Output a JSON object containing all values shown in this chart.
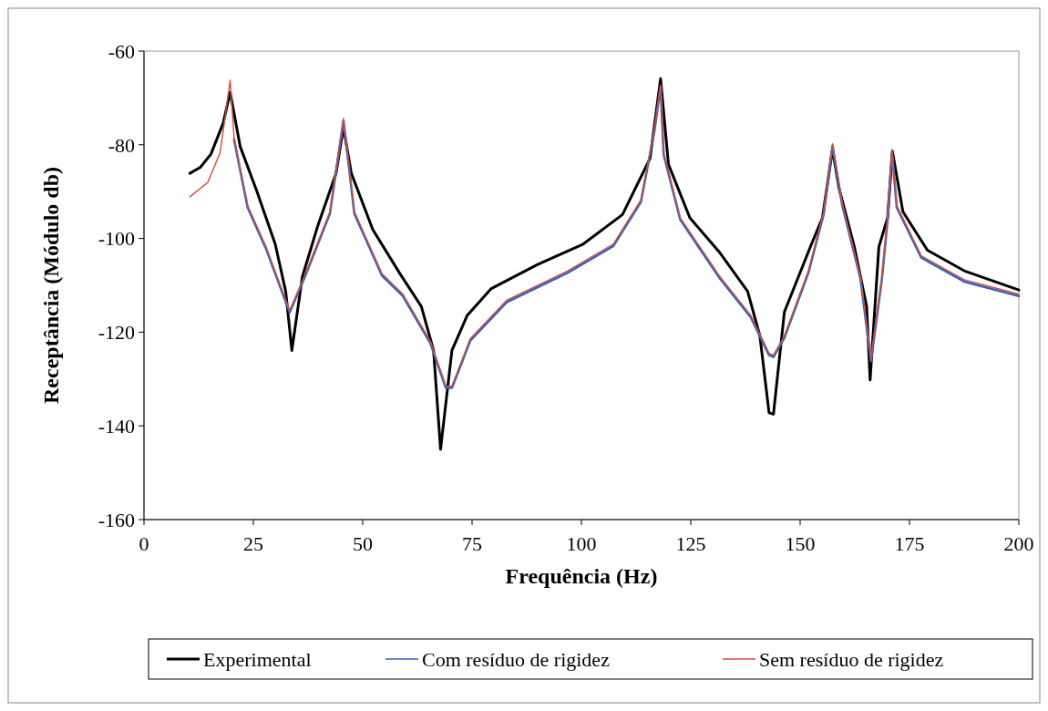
{
  "chart_data": {
    "type": "line",
    "xlabel": "Frequência (Hz)",
    "ylabel": "Receptância (Módulo db)",
    "xlim": [
      0,
      200
    ],
    "xticks": [
      0,
      25,
      50,
      75,
      100,
      125,
      150,
      175,
      200
    ],
    "ylim": [
      -160,
      -60
    ],
    "yticks": [
      -160,
      -140,
      -120,
      -100,
      -80,
      -60
    ],
    "grid": false,
    "legend": "bottom",
    "marker": "none",
    "line_style": "solid",
    "series": [
      {
        "name": "Experimental",
        "color": "#000000",
        "x": [
          10.5,
          12.9,
          15.3,
          18.1,
          19.7,
          22.0,
          25.8,
          30.0,
          32.4,
          33.8,
          36.2,
          39.7,
          43.9,
          45.6,
          47.4,
          52.3,
          58.5,
          63.4,
          66.2,
          67.8,
          70.4,
          73.9,
          79.4,
          89.9,
          100.4,
          109.4,
          115.7,
          118.1,
          119.9,
          124.8,
          131.7,
          138.0,
          140.8,
          142.9,
          143.9,
          146.4,
          152.6,
          155.1,
          157.4,
          158.9,
          162.4,
          165.2,
          166.0,
          168.0,
          170.0,
          171.1,
          173.5,
          179.1,
          187.5,
          200
        ],
        "values": [
          -86.1,
          -84.8,
          -82.0,
          -75.4,
          -68.8,
          -80.4,
          -89.9,
          -101.2,
          -111.3,
          -123.9,
          -108.2,
          -97.4,
          -86.1,
          -76.3,
          -86.1,
          -98.1,
          -107.5,
          -114.5,
          -123.9,
          -145.0,
          -123.9,
          -116.4,
          -110.7,
          -105.6,
          -101.2,
          -94.9,
          -82.9,
          -65.9,
          -84.2,
          -95.6,
          -103.1,
          -111.3,
          -120.8,
          -137.2,
          -137.5,
          -115.7,
          -101.2,
          -95.6,
          -81.0,
          -89.3,
          -101.8,
          -114.5,
          -130.2,
          -101.8,
          -95.6,
          -81.4,
          -94.3,
          -102.5,
          -106.9,
          -111.0
        ]
      },
      {
        "name": "Com resíduo de rigidez",
        "color": "#3b5fc0",
        "x": [
          20.6,
          23.7,
          27.9,
          33.3,
          36.9,
          42.5,
          45.6,
          48.1,
          54.4,
          59.2,
          65.5,
          69.0,
          70.4,
          74.6,
          82.9,
          96.9,
          107.3,
          113.6,
          116.7,
          118.1,
          118.8,
          122.6,
          131.7,
          138.7,
          142.9,
          143.9,
          146.4,
          151.9,
          155.4,
          157.4,
          159.6,
          163.8,
          166.2,
          168.7,
          170.0,
          171.0,
          172.1,
          177.7,
          187.5,
          200
        ],
        "values": [
          -78.9,
          -93.4,
          -102.2,
          -115.8,
          -107.9,
          -94.7,
          -74.8,
          -94.7,
          -107.9,
          -112.3,
          -122.4,
          -131.9,
          -131.9,
          -121.8,
          -113.6,
          -107.3,
          -101.6,
          -92.2,
          -77.0,
          -67.6,
          -82.1,
          -96.0,
          -108.6,
          -116.8,
          -124.9,
          -125.3,
          -121.2,
          -107.3,
          -94.7,
          -80.2,
          -92.8,
          -108.6,
          -126.2,
          -108.6,
          -96.0,
          -81.4,
          -93.4,
          -104.1,
          -109.2,
          -112.3
        ]
      },
      {
        "name": "Sem resíduo de rigidez",
        "color": "#cf4f3c",
        "x": [
          10.5,
          14.6,
          17.4,
          19.7,
          20.6,
          23.7,
          27.9,
          33.3,
          36.9,
          42.5,
          45.6,
          48.1,
          54.4,
          59.2,
          65.5,
          69.0,
          70.4,
          74.6,
          82.9,
          96.9,
          107.3,
          113.6,
          116.7,
          118.1,
          118.8,
          122.6,
          131.7,
          138.7,
          142.9,
          143.9,
          146.4,
          151.9,
          155.4,
          157.4,
          159.6,
          163.8,
          166.2,
          168.7,
          170.0,
          171.0,
          172.1,
          177.7,
          187.5,
          200
        ],
        "values": [
          -91.1,
          -88.0,
          -81.7,
          -66.2,
          -78.5,
          -93.0,
          -101.8,
          -115.4,
          -107.5,
          -94.3,
          -74.4,
          -94.3,
          -107.5,
          -111.9,
          -122.0,
          -131.5,
          -131.5,
          -121.4,
          -113.2,
          -106.9,
          -101.2,
          -91.8,
          -76.6,
          -67.2,
          -81.7,
          -95.6,
          -108.2,
          -116.4,
          -124.5,
          -124.9,
          -120.8,
          -106.9,
          -94.3,
          -79.8,
          -92.4,
          -108.2,
          -125.8,
          -108.2,
          -95.6,
          -81.0,
          -93.0,
          -103.7,
          -108.8,
          -111.9
        ]
      }
    ]
  }
}
